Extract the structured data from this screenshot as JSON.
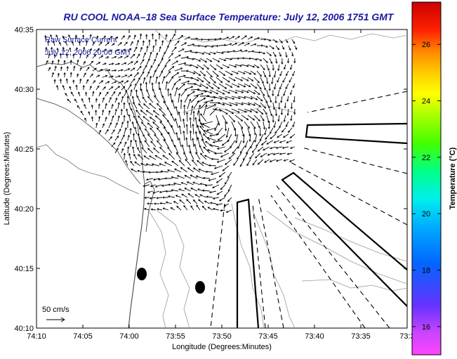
{
  "title": "RU COOL  NOAA–18  Sea Surface Temperature:  July 12, 2006 1751 GMT",
  "legend_box": {
    "line1": "Raw Surface Current",
    "line2": "July 12, 2006 20:00 GMT"
  },
  "scale": {
    "label": "50 cm/s"
  },
  "axes": {
    "xlabel": "Longitude (Degrees:Minutes)",
    "ylabel": "Latitude (Degrees:Minutes)",
    "xticks": [
      "74:10",
      "74:05",
      "74:00",
      "73:55",
      "73:50",
      "73:45",
      "73:40",
      "73:35",
      "73:3"
    ],
    "yticks": [
      "40:35",
      "40:30",
      "40:25",
      "40:20",
      "40:15",
      "40:10"
    ]
  },
  "colorbar": {
    "label": "Temperature (°C)",
    "ticks": [
      "26",
      "24",
      "22",
      "20",
      "18",
      "16"
    ],
    "range": [
      15,
      27.5
    ]
  },
  "colors": {
    "title": "#1a1aa0",
    "land_outline": "#666666",
    "contour": "#999999"
  },
  "features": {
    "current_vectors": "surface current arrows",
    "measurement_dots": 2,
    "shipping_lanes": "outlined lanes and dashed separation zones"
  }
}
